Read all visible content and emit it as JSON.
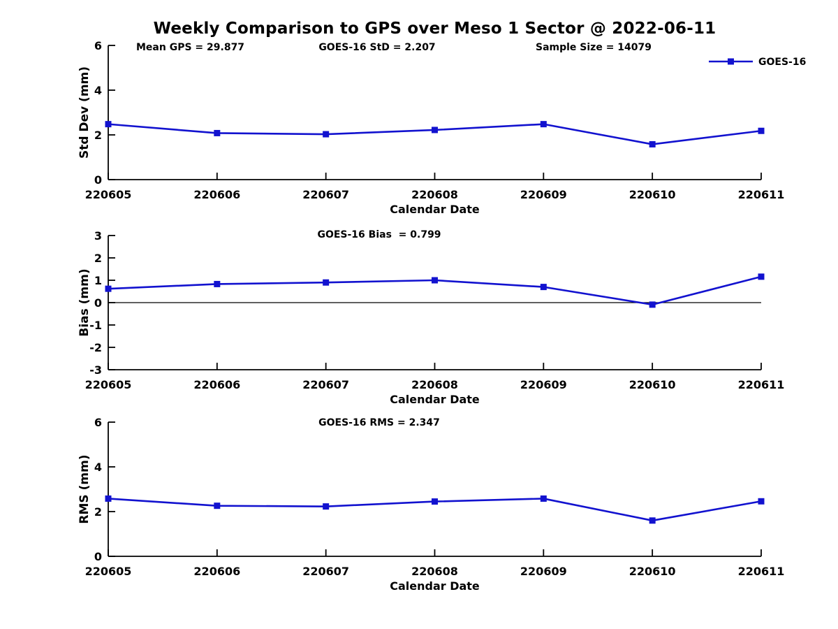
{
  "page_title": "Weekly Comparison to GPS over Meso 1 Sector @ 2022-06-11",
  "colors": {
    "line": "#1212CF",
    "axis": "#000000",
    "zero_line": "#000000",
    "background": "#ffffff"
  },
  "legend": {
    "label": "GOES-16"
  },
  "chart_data": [
    {
      "type": "line",
      "subplot": "std-dev",
      "annotations": [
        "Mean GPS = 29.877",
        "GOES-16 StD = 2.207",
        "Sample Size = 14079"
      ],
      "categories": [
        "220605",
        "220606",
        "220607",
        "220608",
        "220609",
        "220610",
        "220611"
      ],
      "series": [
        {
          "name": "GOES-16",
          "marker": "square",
          "values": [
            2.48,
            2.08,
            2.03,
            2.22,
            2.48,
            1.58,
            2.18
          ]
        }
      ],
      "xlabel": "Calendar Date",
      "ylabel": "Std Dev (mm)",
      "ylim": [
        0,
        6
      ],
      "yticks": [
        0,
        2,
        4,
        6
      ],
      "legend": {
        "visible": true,
        "label": "GOES-16",
        "position": "top-right"
      },
      "zero_line": false,
      "grid": false
    },
    {
      "type": "line",
      "subplot": "bias",
      "annotations": [
        "GOES-16 Bias  = 0.799"
      ],
      "categories": [
        "220605",
        "220606",
        "220607",
        "220608",
        "220609",
        "220610",
        "220611"
      ],
      "series": [
        {
          "name": "GOES-16",
          "marker": "square",
          "values": [
            0.62,
            0.83,
            0.9,
            1.0,
            0.7,
            -0.09,
            1.16
          ]
        }
      ],
      "xlabel": "Calendar Date",
      "ylabel": "Bias (mm)",
      "ylim": [
        -3,
        3
      ],
      "yticks": [
        -3,
        -2,
        -1,
        0,
        1,
        2,
        3
      ],
      "legend": {
        "visible": false
      },
      "zero_line": true,
      "grid": false
    },
    {
      "type": "line",
      "subplot": "rms",
      "annotations": [
        "GOES-16 RMS = 2.347"
      ],
      "categories": [
        "220605",
        "220606",
        "220607",
        "220608",
        "220609",
        "220610",
        "220611"
      ],
      "series": [
        {
          "name": "GOES-16",
          "marker": "square",
          "values": [
            2.58,
            2.26,
            2.23,
            2.45,
            2.58,
            1.6,
            2.46
          ]
        }
      ],
      "xlabel": "Calendar Date",
      "ylabel": "RMS (mm)",
      "ylim": [
        0,
        6
      ],
      "yticks": [
        0,
        2,
        4,
        6
      ],
      "legend": {
        "visible": false
      },
      "zero_line": false,
      "grid": false
    }
  ]
}
